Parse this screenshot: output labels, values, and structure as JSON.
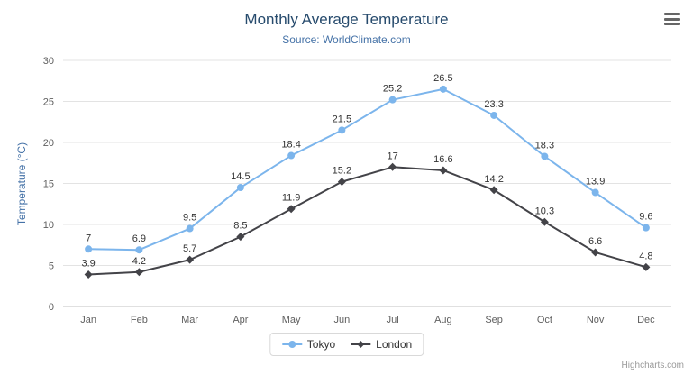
{
  "header": {
    "title": "Monthly Average Temperature",
    "subtitle": "Source: WorldClimate.com"
  },
  "icons": {
    "menu": "hamburger-icon"
  },
  "credits": "Highcharts.com",
  "chart_data": {
    "type": "line",
    "title": "Monthly Average Temperature",
    "subtitle": "Source: WorldClimate.com",
    "categories": [
      "Jan",
      "Feb",
      "Mar",
      "Apr",
      "May",
      "Jun",
      "Jul",
      "Aug",
      "Sep",
      "Oct",
      "Nov",
      "Dec"
    ],
    "series": [
      {
        "name": "Tokyo",
        "color": "#7cb5ec",
        "marker": "circle",
        "values": [
          7,
          6.9,
          9.5,
          14.5,
          18.4,
          21.5,
          25.2,
          26.5,
          23.3,
          18.3,
          13.9,
          9.6
        ]
      },
      {
        "name": "London",
        "color": "#434348",
        "marker": "diamond",
        "values": [
          3.9,
          4.2,
          5.7,
          8.5,
          11.9,
          15.2,
          17,
          16.6,
          14.2,
          10.3,
          6.6,
          4.8
        ]
      }
    ],
    "xlabel": "",
    "ylabel": "Temperature (°C)",
    "ylim": [
      0,
      30
    ],
    "ytick_step": 5,
    "grid": true,
    "legend_position": "bottom"
  }
}
